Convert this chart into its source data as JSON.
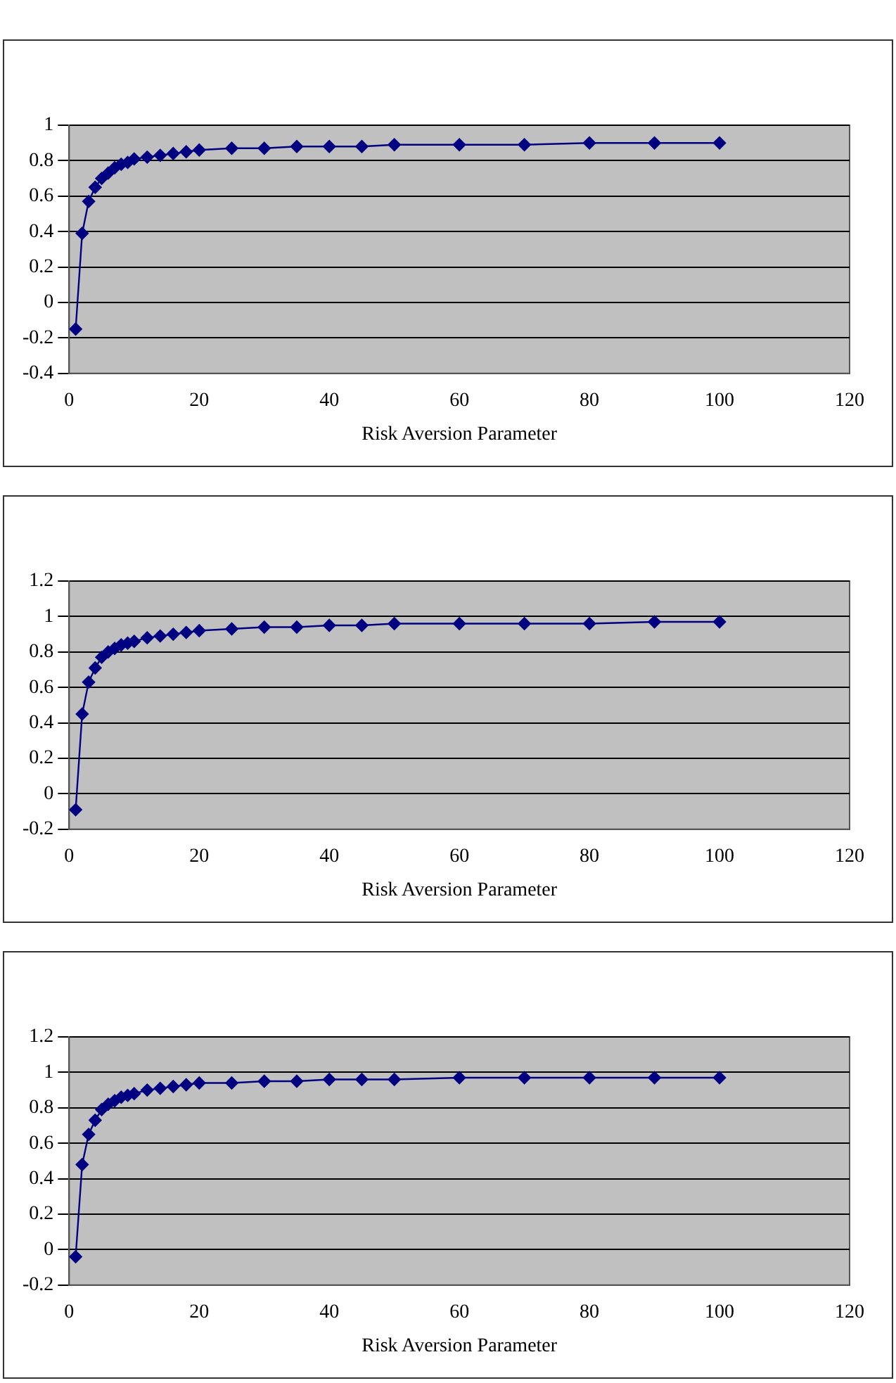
{
  "chart_data": [
    {
      "type": "line",
      "xlabel": "Risk Aversion Parameter",
      "x": [
        1,
        2,
        3,
        4,
        5,
        6,
        7,
        8,
        9,
        10,
        12,
        14,
        16,
        18,
        20,
        25,
        30,
        35,
        40,
        45,
        50,
        60,
        70,
        80,
        90,
        100
      ],
      "xlim": [
        0,
        120
      ],
      "xticks": [
        0,
        20,
        40,
        60,
        80,
        100,
        120
      ],
      "ylim": [
        -0.4,
        1
      ],
      "yticks": [
        -0.4,
        -0.2,
        0,
        0.2,
        0.4,
        0.6,
        0.8,
        1
      ],
      "grid": "y",
      "legend": false,
      "marker": "diamond",
      "line_style": "solid",
      "series": [
        {
          "color": "#000080",
          "values": [
            -0.15,
            0.39,
            0.57,
            0.65,
            0.7,
            0.73,
            0.76,
            0.78,
            0.79,
            0.81,
            0.82,
            0.83,
            0.84,
            0.85,
            0.86,
            0.87,
            0.87,
            0.88,
            0.88,
            0.88,
            0.89,
            0.89,
            0.89,
            0.9,
            0.9,
            0.9
          ]
        }
      ]
    },
    {
      "type": "line",
      "xlabel": "Risk Aversion Parameter",
      "x": [
        1,
        2,
        3,
        4,
        5,
        6,
        7,
        8,
        9,
        10,
        12,
        14,
        16,
        18,
        20,
        25,
        30,
        35,
        40,
        45,
        50,
        60,
        70,
        80,
        90,
        100
      ],
      "xlim": [
        0,
        120
      ],
      "xticks": [
        0,
        20,
        40,
        60,
        80,
        100,
        120
      ],
      "ylim": [
        -0.2,
        1.2
      ],
      "yticks": [
        -0.2,
        0,
        0.2,
        0.4,
        0.6,
        0.8,
        1,
        1.2
      ],
      "grid": "y",
      "legend": false,
      "marker": "diamond",
      "line_style": "solid",
      "series": [
        {
          "color": "#000080",
          "values": [
            -0.09,
            0.45,
            0.63,
            0.71,
            0.77,
            0.8,
            0.82,
            0.84,
            0.85,
            0.86,
            0.88,
            0.89,
            0.9,
            0.91,
            0.92,
            0.93,
            0.94,
            0.94,
            0.95,
            0.95,
            0.96,
            0.96,
            0.96,
            0.96,
            0.97,
            0.97
          ]
        }
      ]
    },
    {
      "type": "line",
      "xlabel": "Risk Aversion Parameter",
      "x": [
        1,
        2,
        3,
        4,
        5,
        6,
        7,
        8,
        9,
        10,
        12,
        14,
        16,
        18,
        20,
        25,
        30,
        35,
        40,
        45,
        50,
        60,
        70,
        80,
        90,
        100
      ],
      "xlim": [
        0,
        120
      ],
      "xticks": [
        0,
        20,
        40,
        60,
        80,
        100,
        120
      ],
      "ylim": [
        -0.2,
        1.2
      ],
      "yticks": [
        -0.2,
        0,
        0.2,
        0.4,
        0.6,
        0.8,
        1,
        1.2
      ],
      "grid": "y",
      "legend": false,
      "marker": "diamond",
      "line_style": "solid",
      "series": [
        {
          "color": "#000080",
          "values": [
            -0.04,
            0.48,
            0.65,
            0.73,
            0.79,
            0.82,
            0.84,
            0.86,
            0.87,
            0.88,
            0.9,
            0.91,
            0.92,
            0.93,
            0.94,
            0.94,
            0.95,
            0.95,
            0.96,
            0.96,
            0.96,
            0.97,
            0.97,
            0.97,
            0.97,
            0.97
          ]
        }
      ]
    }
  ]
}
